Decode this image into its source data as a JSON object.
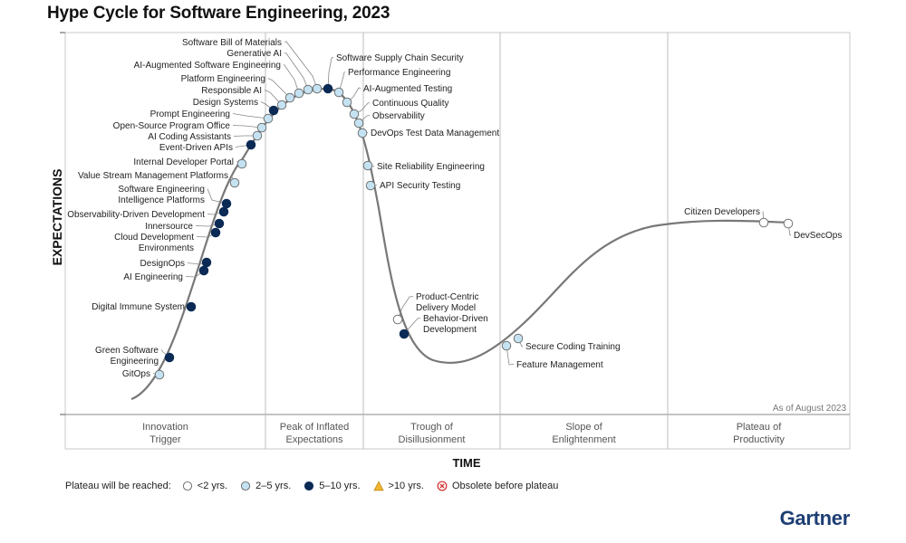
{
  "chart_data": {
    "type": "hype_cycle",
    "title": "Hype Cycle for Software Engineering, 2023",
    "ylabel": "EXPECTATIONS",
    "xlabel": "TIME",
    "as_of": "As of August 2023",
    "phases": [
      {
        "name": "Innovation Trigger",
        "lines": [
          "Innovation",
          "Trigger"
        ]
      },
      {
        "name": "Peak of Inflated Expectations",
        "lines": [
          "Peak of Inflated",
          "Expectations"
        ]
      },
      {
        "name": "Trough of Disillusionment",
        "lines": [
          "Trough of",
          "Disillusionment"
        ]
      },
      {
        "name": "Slope of Enlightenment",
        "lines": [
          "Slope of",
          "Enlightenment"
        ]
      },
      {
        "name": "Plateau of Productivity",
        "lines": [
          "Plateau of",
          "Productivity"
        ]
      }
    ],
    "categories": {
      "lt2": {
        "label": "<2 yrs.",
        "color": "#ffffff"
      },
      "2to5": {
        "label": "2–5 yrs.",
        "color": "#c4e2f1"
      },
      "5to10": {
        "label": "5–10 yrs.",
        "color": "#0b2a55"
      },
      "gt10": {
        "label": ">10 yrs.",
        "color": "#f2b632"
      },
      "obsolete": {
        "label": "Obsolete before plateau",
        "color": "#d12b2b"
      }
    },
    "technologies": [
      {
        "name": "GitOps",
        "cat": "2to5"
      },
      {
        "name": "Green Software Engineering",
        "cat": "5to10"
      },
      {
        "name": "Digital Immune System",
        "cat": "5to10"
      },
      {
        "name": "AI Engineering",
        "cat": "5to10"
      },
      {
        "name": "DesignOps",
        "cat": "5to10"
      },
      {
        "name": "Cloud Development Environments",
        "cat": "5to10"
      },
      {
        "name": "Innersource",
        "cat": "5to10"
      },
      {
        "name": "Observability-Driven Development",
        "cat": "5to10"
      },
      {
        "name": "Software Engineering Intelligence Platforms",
        "cat": "5to10"
      },
      {
        "name": "Value Stream Management Platforms",
        "cat": "2to5"
      },
      {
        "name": "Internal Developer Portal",
        "cat": "2to5"
      },
      {
        "name": "Event-Driven APIs",
        "cat": "5to10"
      },
      {
        "name": "AI Coding Assistants",
        "cat": "2to5"
      },
      {
        "name": "Open-Source Program Office",
        "cat": "2to5"
      },
      {
        "name": "Prompt Engineering",
        "cat": "2to5"
      },
      {
        "name": "Design Systems",
        "cat": "5to10"
      },
      {
        "name": "Responsible AI",
        "cat": "2to5"
      },
      {
        "name": "Platform Engineering",
        "cat": "2to5"
      },
      {
        "name": "AI-Augmented Software Engineering",
        "cat": "2to5"
      },
      {
        "name": "Generative AI",
        "cat": "2to5"
      },
      {
        "name": "Software Bill of Materials",
        "cat": "2to5"
      },
      {
        "name": "Software Supply Chain Security",
        "cat": "5to10"
      },
      {
        "name": "Performance Engineering",
        "cat": "2to5"
      },
      {
        "name": "AI-Augmented Testing",
        "cat": "2to5"
      },
      {
        "name": "Continuous Quality",
        "cat": "2to5"
      },
      {
        "name": "Observability",
        "cat": "2to5"
      },
      {
        "name": "DevOps Test Data Management",
        "cat": "2to5"
      },
      {
        "name": "Site Reliability Engineering",
        "cat": "2to5"
      },
      {
        "name": "API Security Testing",
        "cat": "2to5"
      },
      {
        "name": "Product-Centric Delivery Model",
        "cat": "lt2"
      },
      {
        "name": "Behavior-Driven Development",
        "cat": "5to10"
      },
      {
        "name": "Feature Management",
        "cat": "2to5"
      },
      {
        "name": "Secure Coding Training",
        "cat": "2to5"
      },
      {
        "name": "Citizen Developers",
        "cat": "lt2"
      },
      {
        "name": "DevSecOps",
        "cat": "lt2"
      }
    ]
  },
  "legend": {
    "title": "Plateau will be reached:"
  },
  "brand": "Gartner"
}
